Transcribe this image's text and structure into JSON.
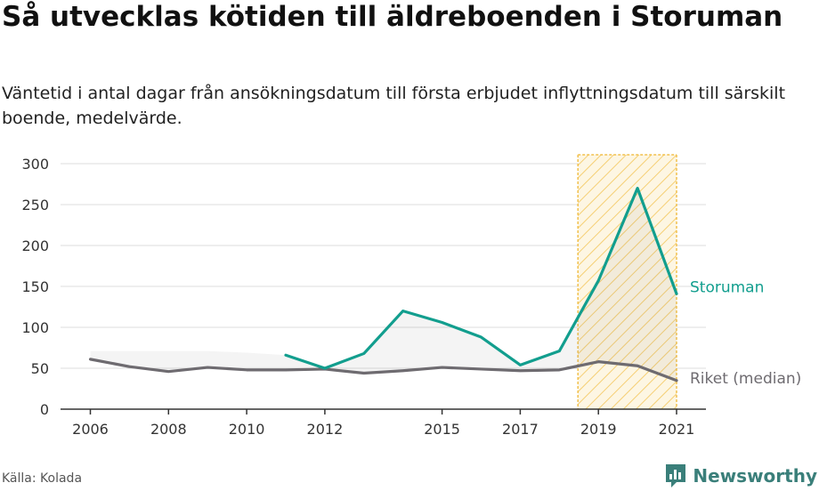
{
  "title": "Så utvecklas kötiden till äldreboenden i Storuman",
  "subtitle": "Väntetid i antal dagar från ansökningsdatum till första erbjudet inflyttningsdatum till särskilt boende, medelvärde.",
  "source": "Källa: Kolada",
  "brand": "Newsworthy",
  "colors": {
    "storuman": "#129e8e",
    "riket": "#6e6b70",
    "highlight": "#f2c14e",
    "grid": "#dddddd",
    "axis": "#333333",
    "brand": "#3a7f7a"
  },
  "chart_data": {
    "type": "line",
    "x_ticks": [
      "2006",
      "2008",
      "2010",
      "2012",
      "2015",
      "2017",
      "2019",
      "2021"
    ],
    "ylim": [
      0,
      300
    ],
    "y_ticks": [
      "0",
      "50",
      "100",
      "150",
      "200",
      "250",
      "300"
    ],
    "highlight_years": [
      2019,
      2021
    ],
    "series": [
      {
        "name": "Storuman",
        "years": [
          2011,
          2012,
          2013,
          2014,
          2015,
          2016,
          2017,
          2018,
          2019,
          2020,
          2021
        ],
        "values": [
          66,
          50,
          68,
          120,
          106,
          88,
          54,
          71,
          157,
          270,
          141
        ]
      },
      {
        "name": "Riket (median)",
        "years": [
          2006,
          2007,
          2008,
          2009,
          2010,
          2011,
          2012,
          2013,
          2014,
          2015,
          2016,
          2017,
          2018,
          2019,
          2020,
          2021
        ],
        "values": [
          61,
          52,
          46,
          51,
          48,
          48,
          49,
          44,
          47,
          51,
          49,
          47,
          48,
          58,
          53,
          35
        ]
      }
    ],
    "shaded_reference": {
      "years": [
        2006,
        2007,
        2008,
        2009,
        2010,
        2011,
        2012,
        2013,
        2014,
        2015,
        2016,
        2017,
        2018,
        2019,
        2020,
        2021
      ],
      "values": [
        71,
        71,
        71,
        71,
        69,
        66,
        50,
        68,
        120,
        106,
        88,
        54,
        71,
        157,
        270,
        141
      ]
    },
    "grid": true,
    "legend": "direct-labels-right"
  }
}
